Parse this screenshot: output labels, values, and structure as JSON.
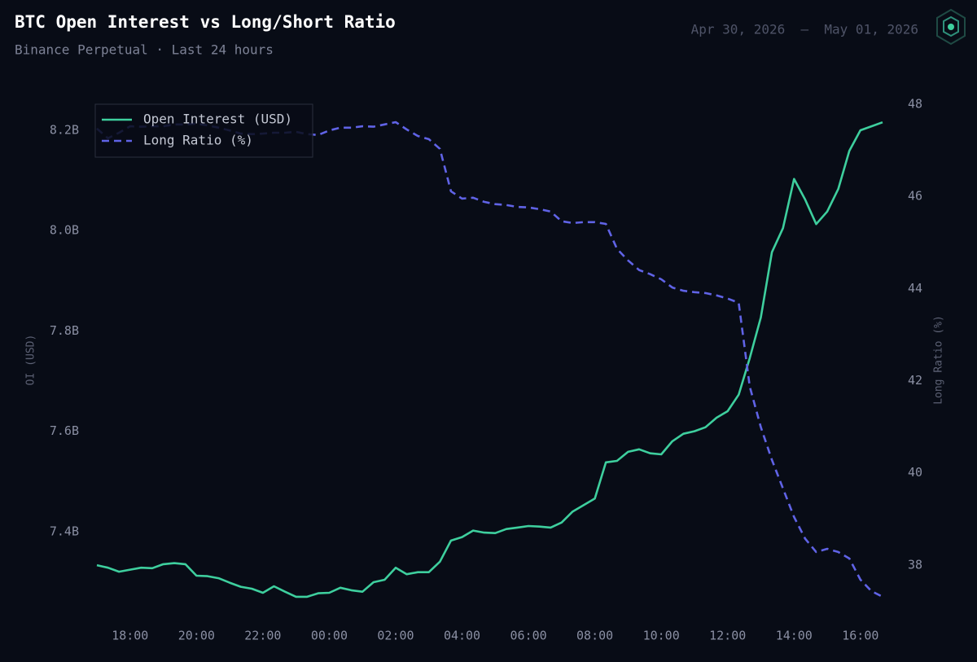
{
  "chart_data": {
    "type": "line",
    "title": "BTC Open Interest vs Long/Short Ratio",
    "subtitle": "Binance Perpetual · Last 24 hours",
    "date_range": "Apr 30, 2026  —  May 01, 2026",
    "ylabel": "OI (USD)",
    "y2label": "Long Ratio (%)",
    "legend": "upper left",
    "grid": false,
    "x": [
      "17:00",
      "17:20",
      "17:40",
      "18:00",
      "18:20",
      "18:40",
      "19:00",
      "19:20",
      "19:40",
      "20:00",
      "20:20",
      "20:40",
      "21:00",
      "21:20",
      "21:40",
      "22:00",
      "22:20",
      "22:40",
      "23:00",
      "23:20",
      "23:40",
      "00:00",
      "00:20",
      "00:40",
      "01:00",
      "01:20",
      "01:40",
      "02:00",
      "02:20",
      "02:40",
      "03:00",
      "03:20",
      "03:40",
      "04:00",
      "04:20",
      "04:40",
      "05:00",
      "05:20",
      "05:40",
      "06:00",
      "06:20",
      "06:40",
      "07:00",
      "07:20",
      "07:40",
      "08:00",
      "08:20",
      "08:40",
      "09:00",
      "09:20",
      "09:40",
      "10:00",
      "10:20",
      "10:40",
      "11:00",
      "11:20",
      "11:40",
      "12:00",
      "12:20",
      "12:40",
      "13:00",
      "13:20",
      "13:40",
      "14:00",
      "14:20",
      "14:40",
      "15:00",
      "15:20",
      "15:40",
      "16:00",
      "16:20",
      "16:40"
    ],
    "xticks": [
      "18:00",
      "20:00",
      "22:00",
      "00:00",
      "02:00",
      "04:00",
      "06:00",
      "08:00",
      "10:00",
      "12:00",
      "14:00",
      "16:00"
    ],
    "ylim": [
      7226000000,
      8265000000
    ],
    "yticks": [
      {
        "value": 7400000000,
        "label": "7.4B"
      },
      {
        "value": 7600000000,
        "label": "7.6B"
      },
      {
        "value": 7800000000,
        "label": "7.8B"
      },
      {
        "value": 8000000000,
        "label": "8.0B"
      },
      {
        "value": 8200000000,
        "label": "8.2B"
      }
    ],
    "y2lim": [
      36.83,
      48.14
    ],
    "y2ticks": [
      38,
      40,
      42,
      44,
      46,
      48
    ],
    "series": [
      {
        "name": "Open Interest (USD)",
        "color": "#3ecf9e",
        "style": "solid",
        "axis": "y",
        "values": [
          7333000000,
          7328000000,
          7320000000,
          7324000000,
          7328000000,
          7327000000,
          7335000000,
          7337000000,
          7335000000,
          7312000000,
          7311000000,
          7307000000,
          7298000000,
          7290000000,
          7286000000,
          7278000000,
          7291000000,
          7280000000,
          7270000000,
          7270000000,
          7277000000,
          7278000000,
          7288000000,
          7283000000,
          7280000000,
          7299000000,
          7304000000,
          7328000000,
          7315000000,
          7319000000,
          7319000000,
          7340000000,
          7382000000,
          7389000000,
          7402000000,
          7398000000,
          7397000000,
          7405000000,
          7408000000,
          7411000000,
          7410000000,
          7408000000,
          7418000000,
          7440000000,
          7453000000,
          7466000000,
          7538000000,
          7541000000,
          7559000000,
          7564000000,
          7556000000,
          7554000000,
          7580000000,
          7595000000,
          7600000000,
          7608000000,
          7627000000,
          7640000000,
          7673000000,
          7746000000,
          7827000000,
          7957000000,
          8005000000,
          8103000000,
          8062000000,
          8013000000,
          8038000000,
          8083000000,
          8159000000,
          8200000000,
          8208000000,
          8216000000
        ]
      },
      {
        "name": "Long Ratio (%)",
        "color": "#6063e6",
        "style": "dashed",
        "axis": "y2",
        "values": [
          47.47,
          47.26,
          47.38,
          47.52,
          47.51,
          47.52,
          47.52,
          47.56,
          47.56,
          47.58,
          47.54,
          47.49,
          47.43,
          47.36,
          47.35,
          47.36,
          47.38,
          47.38,
          47.4,
          47.35,
          47.33,
          47.43,
          47.49,
          47.49,
          47.52,
          47.51,
          47.56,
          47.61,
          47.45,
          47.31,
          47.24,
          47.03,
          46.11,
          45.95,
          45.97,
          45.88,
          45.83,
          45.81,
          45.77,
          45.76,
          45.72,
          45.67,
          45.46,
          45.42,
          45.44,
          45.44,
          45.4,
          44.86,
          44.61,
          44.4,
          44.31,
          44.2,
          44.02,
          43.95,
          43.92,
          43.9,
          43.85,
          43.78,
          43.69,
          41.87,
          40.99,
          40.28,
          39.66,
          39.04,
          38.57,
          38.28,
          38.35,
          38.28,
          38.14,
          37.68,
          37.43,
          37.31
        ]
      }
    ]
  }
}
